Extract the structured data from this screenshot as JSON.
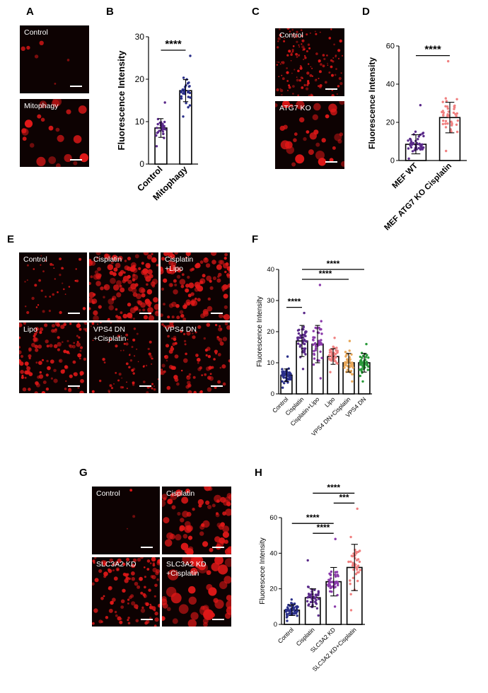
{
  "panels": {
    "A": {
      "letter": "A",
      "images": [
        "Control",
        "Mitophagy"
      ]
    },
    "C": {
      "letter": "C",
      "images": [
        "Control",
        "ATG7 KO"
      ]
    },
    "E": {
      "letter": "E",
      "images": [
        "Control",
        "Cisplatin",
        "Cisplatin\n+Lipo",
        "Lipo",
        "VPS4 DN\n+Cisplatin",
        "VPS4 DN"
      ]
    },
    "G": {
      "letter": "G",
      "images": [
        "Control",
        "Cisplatin",
        "SLC3A2 KD",
        "SLC3A2 KD\n+Cisplatin"
      ]
    }
  },
  "colors": {
    "micro_bg": "#0d0202",
    "signal": "#e01818",
    "navy": "#2a2f8a",
    "purple": "#5a2a8a",
    "salmon": "#f08080",
    "violet": "#8a3aaa",
    "tan": "#e8a85a",
    "green": "#2a9a3a"
  },
  "chart_data": [
    {
      "panel": "B",
      "type": "bar",
      "categories": [
        "Control",
        "Mitophagy"
      ],
      "values": [
        8.5,
        17.3
      ],
      "sd": [
        2.2,
        2.6
      ],
      "ylabel": "Fluorescence Intensity",
      "ylim": [
        0,
        30
      ],
      "yticks": [
        0,
        10,
        20,
        30
      ],
      "significance": [
        {
          "pair": [
            0,
            1
          ],
          "label": "****"
        }
      ],
      "point_colors": [
        "#5a2a8a",
        "#2a2f8a"
      ],
      "n": [
        30,
        30
      ],
      "ranges": [
        [
          4.2,
          14.5
        ],
        [
          11.2,
          25.5
        ]
      ]
    },
    {
      "panel": "D",
      "type": "bar",
      "categories": [
        "MEF WT",
        "MEF ATG7 KO Cisplatin"
      ],
      "values": [
        8.5,
        22.5
      ],
      "sd": [
        5,
        8
      ],
      "ylabel": "Fluorescence Intensity",
      "ylim": [
        0,
        60
      ],
      "yticks": [
        0,
        20,
        40,
        60
      ],
      "significance": [
        {
          "pair": [
            0,
            1
          ],
          "label": "****"
        }
      ],
      "point_colors": [
        "#5a2a8a",
        "#f08080"
      ],
      "n": [
        45,
        45
      ],
      "ranges": [
        [
          1,
          29
        ],
        [
          5,
          52
        ]
      ]
    },
    {
      "panel": "F",
      "type": "bar",
      "categories": [
        "Control",
        "Cisplatin",
        "Cisplatin+Lipo",
        "Lipo",
        "VPS4 DN+Cisplatin",
        "VPS4 DN"
      ],
      "values": [
        6,
        17,
        16,
        12,
        10,
        10
      ],
      "sd": [
        2,
        5,
        6,
        2.5,
        3,
        3
      ],
      "ylabel": "Fluorescence Intensity",
      "ylim": [
        0,
        40
      ],
      "yticks": [
        0,
        10,
        20,
        30,
        40
      ],
      "significance": [
        {
          "pair": [
            0,
            1
          ],
          "label": "****"
        },
        {
          "pair": [
            1,
            4
          ],
          "label": "****"
        },
        {
          "pair": [
            1,
            5
          ],
          "label": "****"
        }
      ],
      "point_colors": [
        "#2a2f8a",
        "#5a2a8a",
        "#8a3aaa",
        "#f08080",
        "#e8a85a",
        "#2a9a3a"
      ],
      "n": [
        45,
        45,
        40,
        45,
        45,
        40
      ],
      "ranges": [
        [
          2,
          12
        ],
        [
          8,
          26
        ],
        [
          5,
          35
        ],
        [
          7,
          18
        ],
        [
          4,
          17
        ],
        [
          4,
          16
        ]
      ]
    },
    {
      "panel": "H",
      "type": "bar",
      "categories": [
        "Control",
        "Cisplatin",
        "SLC3A2 KD",
        "SLC3A2 KD+Cisplatin"
      ],
      "values": [
        8,
        15,
        24,
        32
      ],
      "sd": [
        3,
        5,
        8,
        13
      ],
      "ylabel": "Fluorescece Intensity",
      "ylim": [
        0,
        60
      ],
      "yticks": [
        0,
        20,
        40,
        60
      ],
      "significance": [
        {
          "pair": [
            1,
            2
          ],
          "label": "****"
        },
        {
          "pair": [
            0,
            2
          ],
          "label": "****"
        },
        {
          "pair": [
            2,
            3
          ],
          "label": "***"
        },
        {
          "pair": [
            1,
            3
          ],
          "label": "****"
        }
      ],
      "point_colors": [
        "#2a2f8a",
        "#5a2a8a",
        "#8a3aaa",
        "#f08080"
      ],
      "n": [
        45,
        45,
        40,
        40
      ],
      "ranges": [
        [
          2,
          14
        ],
        [
          5,
          36
        ],
        [
          10,
          48
        ],
        [
          8,
          65
        ]
      ]
    }
  ]
}
